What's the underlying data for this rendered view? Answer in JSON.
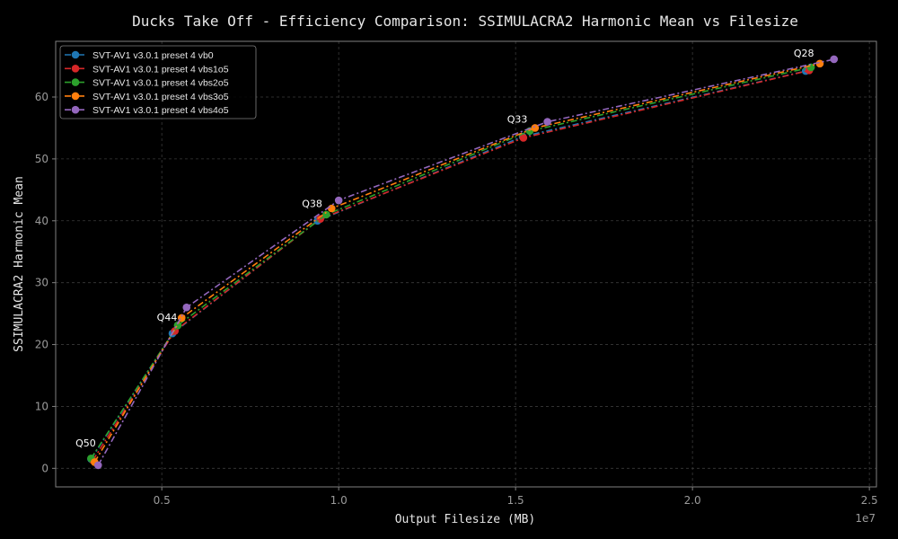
{
  "chart_data": {
    "type": "line",
    "title": "Ducks Take Off - Efficiency Comparison: SSIMULACRA2 Harmonic Mean vs Filesize",
    "xlabel": "Output Filesize (MB)",
    "ylabel": "SSIMULACRA2 Harmonic Mean",
    "x_offset_label": "1e7",
    "xlim": [
      2000000,
      25200000
    ],
    "ylim": [
      -3,
      69
    ],
    "x_ticks": [
      5000000,
      10000000,
      15000000,
      20000000,
      25000000
    ],
    "x_tick_labels": [
      "0.5",
      "1.0",
      "1.5",
      "2.0",
      "2.5"
    ],
    "y_ticks": [
      0,
      10,
      20,
      30,
      40,
      50,
      60
    ],
    "y_tick_labels": [
      "0",
      "10",
      "20",
      "30",
      "40",
      "50",
      "60"
    ],
    "grid": true,
    "legend_position": "top-left",
    "colors": {
      "background": "#000000",
      "axes": "#808080",
      "grid": "#3a3a3a",
      "text": "#e6e6e6",
      "tick_text": "#9a9a9a"
    },
    "point_labels": [
      {
        "text": "Q50",
        "x": 3000000,
        "y": 1.5
      },
      {
        "text": "Q44",
        "x": 5300000,
        "y": 21.8
      },
      {
        "text": "Q38",
        "x": 9400000,
        "y": 40.2
      },
      {
        "text": "Q33",
        "x": 15200000,
        "y": 53.8
      },
      {
        "text": "Q28",
        "x": 23300000,
        "y": 64.5
      }
    ],
    "series": [
      {
        "name": "SVT-AV1 v3.0.1 preset 4 vb0",
        "color": "#1f77b4",
        "x": [
          3000000,
          5300000,
          9400000,
          15200000,
          23200000
        ],
        "y": [
          1.5,
          21.8,
          40.0,
          53.6,
          64.2
        ]
      },
      {
        "name": "SVT-AV1 v3.0.1 preset 4 vbs1o5",
        "color": "#d62728",
        "x": [
          3050000,
          5370000,
          9480000,
          15220000,
          23300000
        ],
        "y": [
          1.3,
          22.2,
          40.3,
          53.4,
          64.3
        ]
      },
      {
        "name": "SVT-AV1 v3.0.1 preset 4 vbs2o5",
        "color": "#2ca02c",
        "x": [
          3000000,
          5450000,
          9650000,
          15400000,
          23350000
        ],
        "y": [
          1.6,
          23.1,
          41.0,
          54.5,
          64.8
        ]
      },
      {
        "name": "SVT-AV1 v3.0.1 preset 4 vbs3o5",
        "color": "#ff7f0e",
        "x": [
          3100000,
          5560000,
          9800000,
          15550000,
          23600000
        ],
        "y": [
          1.0,
          24.3,
          42.0,
          55.0,
          65.4
        ]
      },
      {
        "name": "SVT-AV1 v3.0.1 preset 4 vbs4o5",
        "color": "#9467bd",
        "x": [
          3200000,
          5700000,
          10000000,
          15900000,
          24000000
        ],
        "y": [
          0.5,
          26.0,
          43.3,
          56.0,
          66.1
        ]
      }
    ]
  }
}
